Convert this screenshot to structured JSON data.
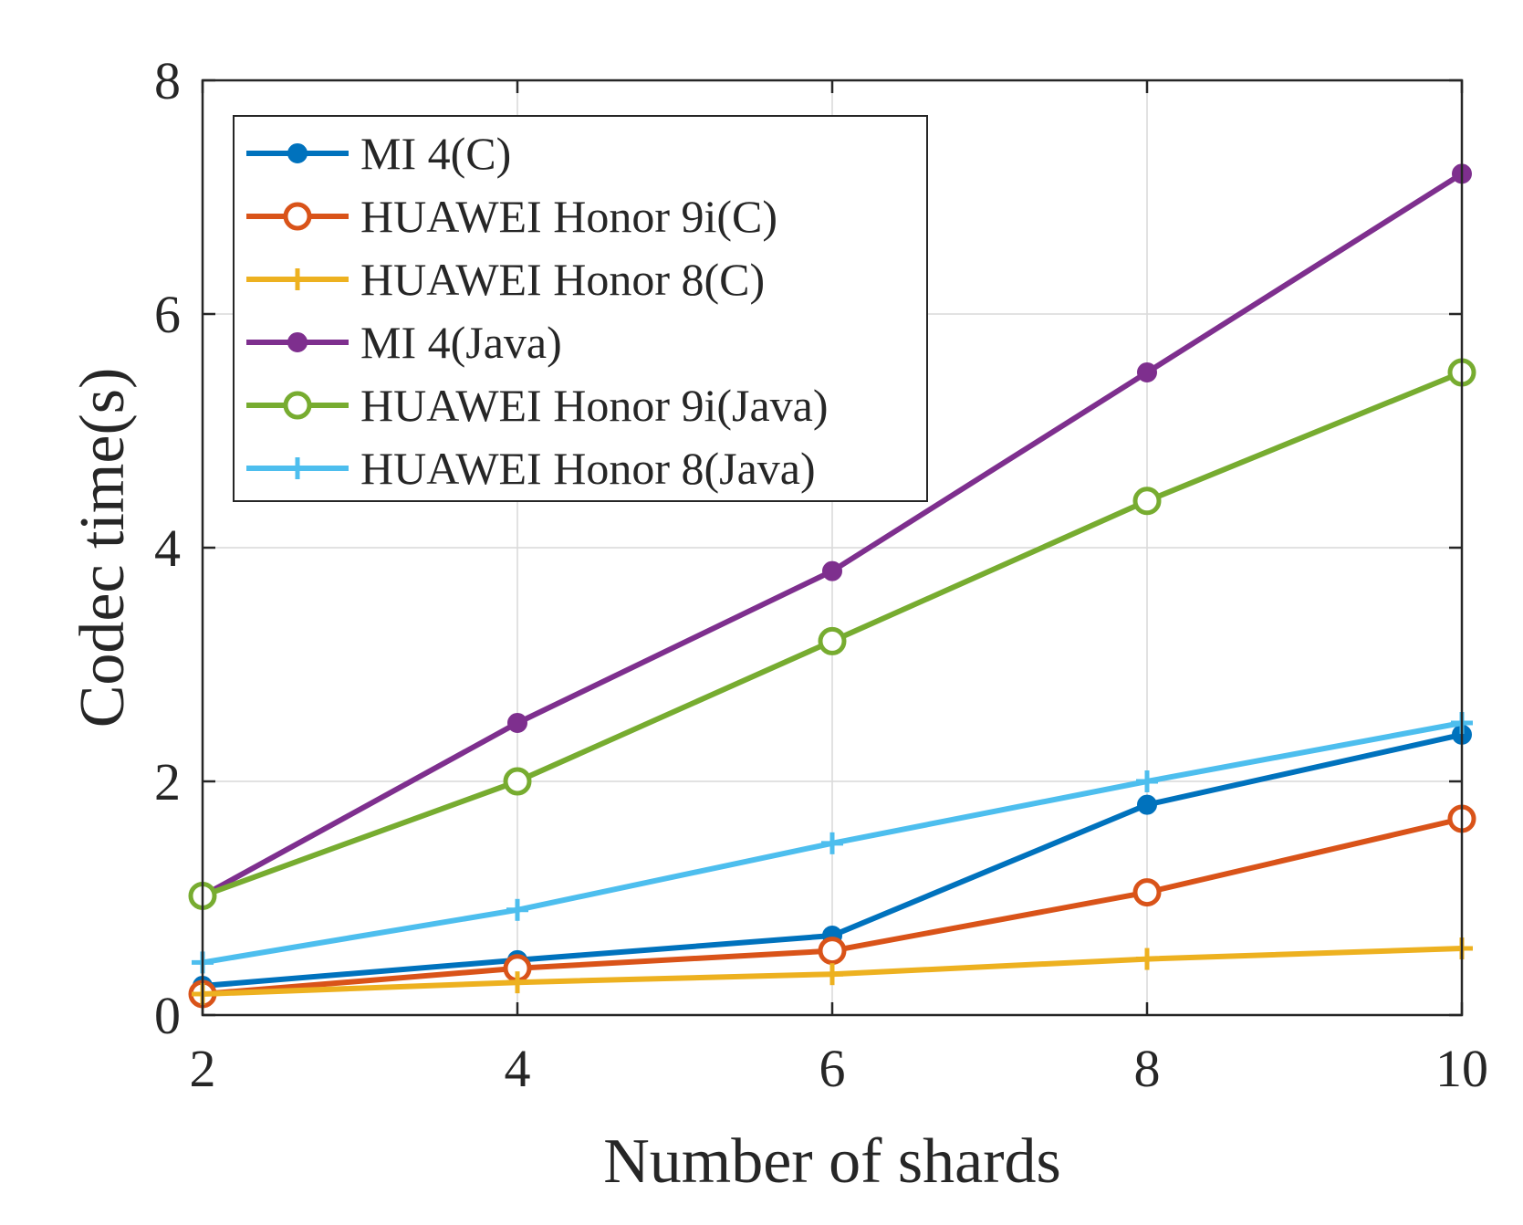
{
  "chart_data": {
    "type": "line",
    "title": "",
    "xlabel": "Number of shards",
    "ylabel": "Codec time(s)",
    "xlim": [
      2,
      10
    ],
    "ylim": [
      0,
      8
    ],
    "x": [
      2,
      4,
      6,
      8,
      10
    ],
    "xticks": [
      "2",
      "4",
      "6",
      "8",
      "10"
    ],
    "yticks": [
      "0",
      "2",
      "4",
      "6",
      "8"
    ],
    "grid": true,
    "legend_position": "top-left",
    "series": [
      {
        "name": "MI 4(C)",
        "color": "#0072BD",
        "marker": "filled-circle",
        "values": [
          0.25,
          0.47,
          0.68,
          1.8,
          2.4
        ]
      },
      {
        "name": "HUAWEI Honor 9i(C)",
        "color": "#D95319",
        "marker": "open-circle",
        "values": [
          0.18,
          0.4,
          0.55,
          1.05,
          1.68
        ]
      },
      {
        "name": "HUAWEI Honor 8(C)",
        "color": "#EDB120",
        "marker": "plus",
        "values": [
          0.18,
          0.28,
          0.35,
          0.48,
          0.57
        ]
      },
      {
        "name": "MI 4(Java)",
        "color": "#7E2F8E",
        "marker": "filled-circle",
        "values": [
          1.02,
          2.5,
          3.8,
          5.5,
          7.2
        ]
      },
      {
        "name": "HUAWEI Honor 9i(Java)",
        "color": "#77AC30",
        "marker": "open-circle",
        "values": [
          1.02,
          2.0,
          3.2,
          4.4,
          5.5
        ]
      },
      {
        "name": "HUAWEI Honor 8(Java)",
        "color": "#4DBEEE",
        "marker": "plus",
        "values": [
          0.45,
          0.9,
          1.47,
          2.0,
          2.5
        ]
      }
    ]
  }
}
